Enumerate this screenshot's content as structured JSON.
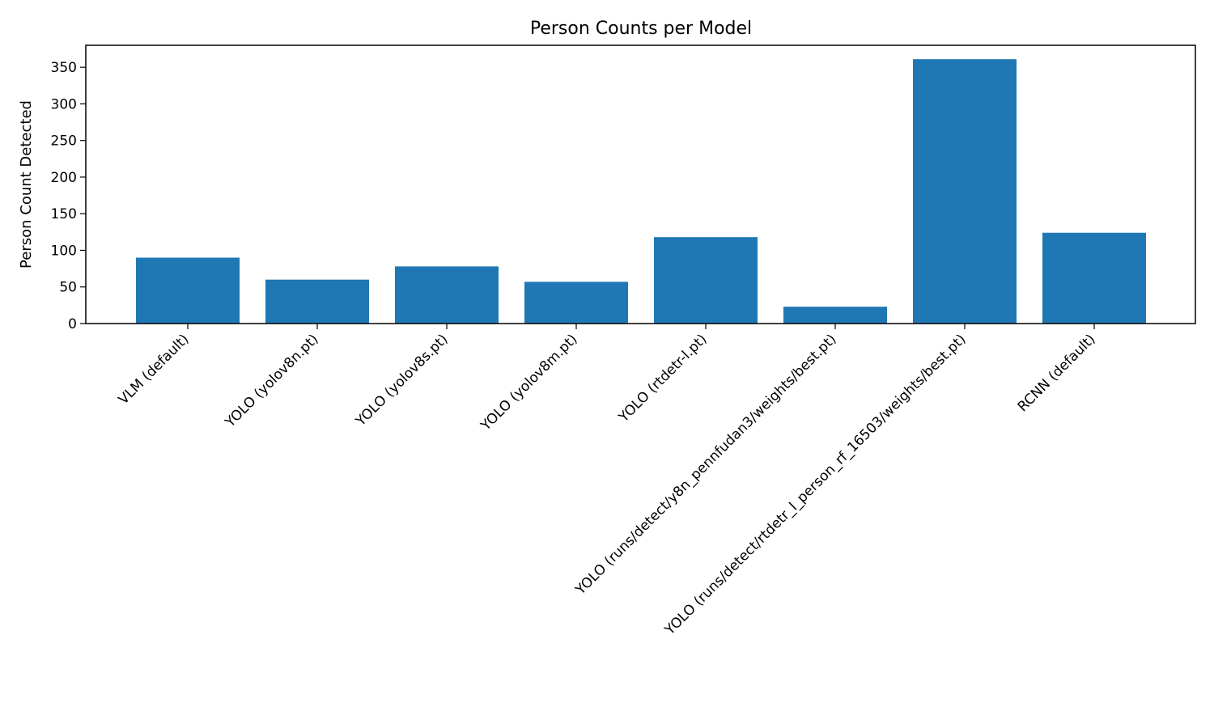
{
  "chart_data": {
    "type": "bar",
    "title": "Person Counts per Model",
    "xlabel": "",
    "ylabel": "Person Count Detected",
    "categories": [
      "VLM (default)",
      "YOLO (yolov8n.pt)",
      "YOLO (yolov8s.pt)",
      "YOLO (yolov8m.pt)",
      "YOLO (rtdetr-l.pt)",
      "YOLO (runs/detect/y8n_pennfudan3/weights/best.pt)",
      "YOLO (runs/detect/rtdetr_l_person_rf_16503/weights/best.pt)",
      "RCNN (default)"
    ],
    "values": [
      90,
      60,
      78,
      57,
      118,
      23,
      361,
      124
    ],
    "ylim": [
      0,
      380
    ],
    "yticks": [
      0,
      50,
      100,
      150,
      200,
      250,
      300,
      350
    ],
    "grid": false,
    "bar_color": "#1f77b4"
  }
}
